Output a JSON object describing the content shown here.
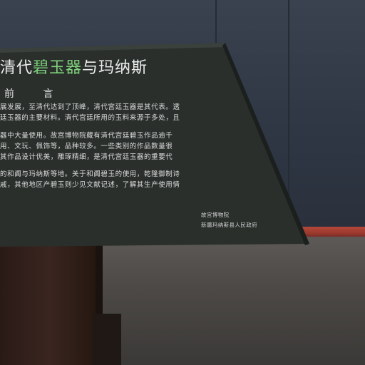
{
  "sign": {
    "title_pre": "清代",
    "title_highlight": "碧玉器",
    "title_post": "与玛纳斯",
    "subtitle": "前 言",
    "paragraphs": [
      "展发展，至清代达到了顶峰，清代宫廷玉器是其代表。透",
      "廷玉器的主要材料。清代宫廷所用的玉料来源于多处，且",
      "器中大量使用。故宫博物院藏有清代宫廷碧玉作品逾千",
      "用、文玩、佩饰等，品种较多。一些类别的作品数量很",
      "其作品设计优美，雕琢精细，是清代宫廷玉器的重要代",
      "的和阗与玛纳斯等地。关于和阗碧玉的使用，乾隆御制诗",
      "戚，其他地区产碧玉则少见文献记述，了解其生产使用情"
    ],
    "credits": [
      "故宫博物院",
      "新疆玛纳斯县人民政府"
    ]
  }
}
